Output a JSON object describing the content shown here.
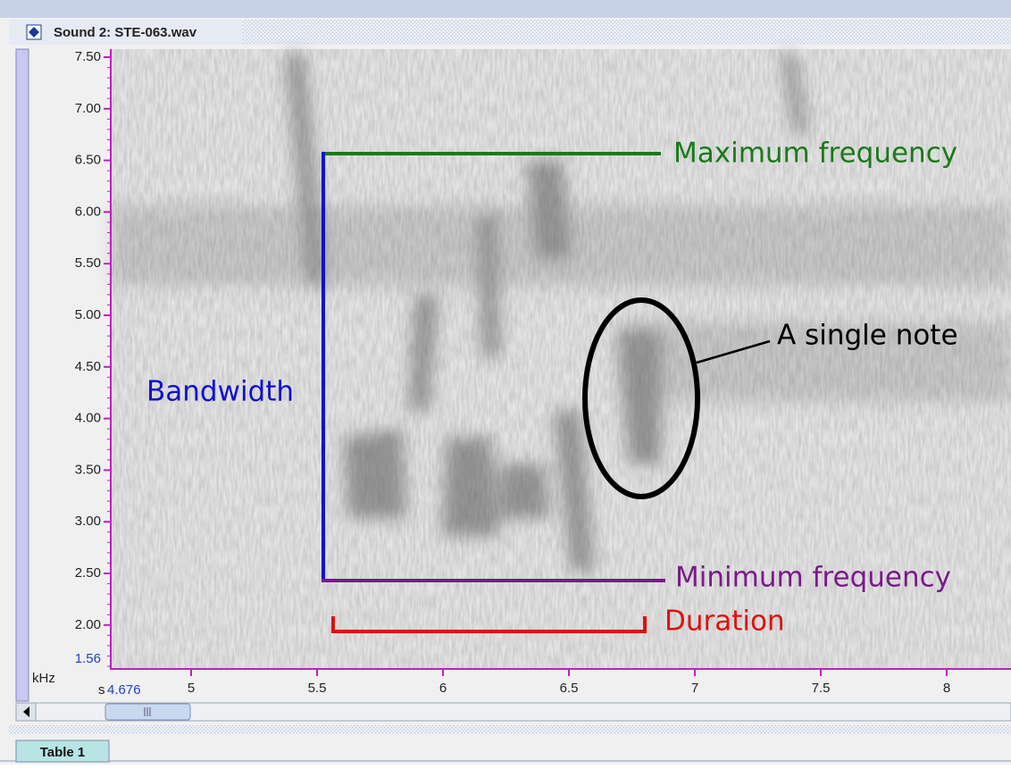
{
  "window": {
    "title": "Sound 2: STE-063.wav"
  },
  "y_axis": {
    "unit": "kHz",
    "ticks": [
      "7.50",
      "7.00",
      "6.50",
      "6.00",
      "5.50",
      "5.00",
      "4.50",
      "4.00",
      "3.50",
      "3.00",
      "2.50",
      "2.00"
    ],
    "bottom_label": "1.56"
  },
  "x_axis": {
    "unit": "s",
    "start_label": "4.676",
    "ticks": [
      "5",
      "5.5",
      "6",
      "6.5",
      "7",
      "7.5",
      "8"
    ]
  },
  "annotations": {
    "max_frequency": "Maximum frequency",
    "min_frequency": "Minimum frequency",
    "bandwidth": "Bandwidth",
    "duration": "Duration",
    "note": "A single note"
  },
  "tabs": [
    "Table 1"
  ]
}
